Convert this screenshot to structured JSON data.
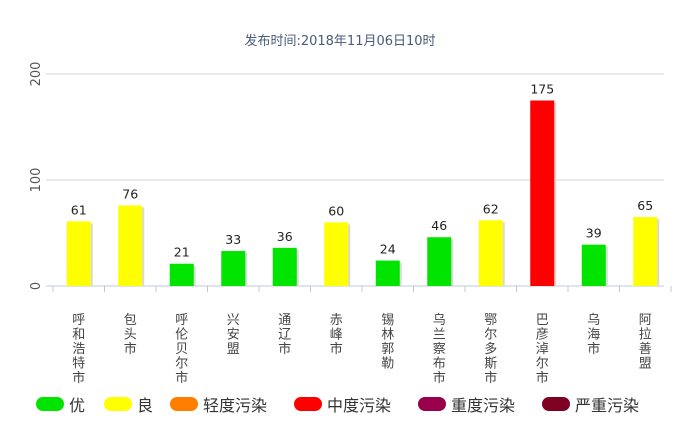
{
  "subtitle": "发布时间:2018年11月06日10时",
  "colors": {
    "优": "#00e400",
    "良": "#ffff00",
    "轻度污染": "#ff7e00",
    "中度污染": "#ff0000",
    "重度污染": "#99004c",
    "严重污染": "#7e0023"
  },
  "legend": [
    {
      "label": "优",
      "color": "#00e400"
    },
    {
      "label": "良",
      "color": "#ffff00"
    },
    {
      "label": "轻度污染",
      "color": "#ff7e00"
    },
    {
      "label": "中度污染",
      "color": "#ff0000"
    },
    {
      "label": "重度污染",
      "color": "#99004c"
    },
    {
      "label": "严重污染",
      "color": "#7e0023"
    }
  ],
  "chart_data": {
    "type": "bar",
    "title": "",
    "subtitle": "发布时间:2018年11月06日10时",
    "xlabel": "",
    "ylabel": "",
    "ylim": [
      0,
      200
    ],
    "yticks": [
      0,
      100,
      200
    ],
    "grid": true,
    "legend_position": "bottom",
    "categories": [
      "呼和浩特市",
      "包头市",
      "呼伦贝尔市",
      "兴安盟",
      "通辽市",
      "赤峰市",
      "锡林郭勒盟",
      "乌兰察布市",
      "鄂尔多斯市",
      "巴彦淖尔市",
      "乌海市",
      "阿拉善盟"
    ],
    "visible_labels": [
      "呼和浩特市",
      "包头市",
      "呼伦贝尔市",
      "兴安盟",
      "通辽市",
      "赤峰市",
      "锡林郭勒",
      "乌兰察布市",
      "鄂尔多斯市",
      "巴彦淖尔市",
      "乌海市",
      "阿拉善盟"
    ],
    "values": [
      61,
      76,
      21,
      33,
      36,
      60,
      24,
      46,
      62,
      175,
      39,
      65
    ],
    "levels": [
      "良",
      "良",
      "优",
      "优",
      "优",
      "良",
      "优",
      "优",
      "良",
      "中度污染",
      "优",
      "良"
    ]
  }
}
